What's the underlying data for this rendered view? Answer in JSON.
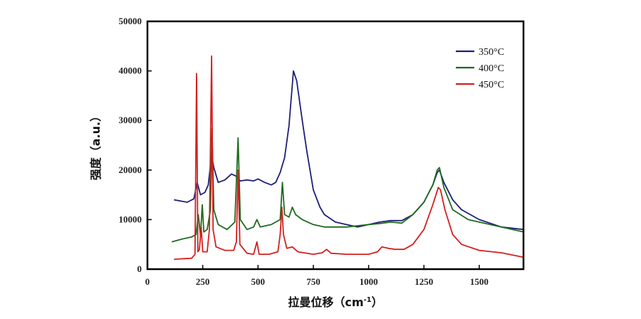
{
  "chart_data": {
    "type": "line",
    "title": "",
    "xlabel": "拉曼位移（cm",
    "xlabel_sup": "-1",
    "xlabel_close": "）",
    "ylabel": "强度（a.u.）",
    "xlim": [
      0,
      1700
    ],
    "ylim": [
      0,
      50000
    ],
    "xticks": [
      0,
      250,
      500,
      750,
      1000,
      1250,
      1500
    ],
    "yticks": [
      0,
      10000,
      20000,
      30000,
      40000,
      50000
    ],
    "grid": false,
    "legend_position": "top-right",
    "series": [
      {
        "name": "350°C",
        "color": "#1f1f7a",
        "points": [
          [
            120,
            14000
          ],
          [
            180,
            13500
          ],
          [
            210,
            14200
          ],
          [
            225,
            17500
          ],
          [
            240,
            15000
          ],
          [
            260,
            15500
          ],
          [
            275,
            17000
          ],
          [
            290,
            23000
          ],
          [
            300,
            20500
          ],
          [
            320,
            17500
          ],
          [
            350,
            18000
          ],
          [
            380,
            19200
          ],
          [
            400,
            18800
          ],
          [
            420,
            17800
          ],
          [
            450,
            18000
          ],
          [
            480,
            17800
          ],
          [
            500,
            18200
          ],
          [
            530,
            17500
          ],
          [
            560,
            17000
          ],
          [
            580,
            17500
          ],
          [
            600,
            19500
          ],
          [
            620,
            22500
          ],
          [
            640,
            29000
          ],
          [
            660,
            40000
          ],
          [
            675,
            38000
          ],
          [
            700,
            30000
          ],
          [
            720,
            24000
          ],
          [
            750,
            16000
          ],
          [
            780,
            12500
          ],
          [
            800,
            11000
          ],
          [
            850,
            9500
          ],
          [
            900,
            9000
          ],
          [
            950,
            8500
          ],
          [
            1000,
            9000
          ],
          [
            1050,
            9500
          ],
          [
            1100,
            9800
          ],
          [
            1150,
            9800
          ],
          [
            1200,
            11000
          ],
          [
            1250,
            13500
          ],
          [
            1290,
            17000
          ],
          [
            1310,
            19500
          ],
          [
            1320,
            20000
          ],
          [
            1340,
            17500
          ],
          [
            1380,
            14000
          ],
          [
            1420,
            12000
          ],
          [
            1500,
            10000
          ],
          [
            1600,
            8500
          ],
          [
            1700,
            8000
          ]
        ]
      },
      {
        "name": "400°C",
        "color": "#1e6b1e",
        "points": [
          [
            110,
            5500
          ],
          [
            150,
            6000
          ],
          [
            200,
            6500
          ],
          [
            220,
            7000
          ],
          [
            230,
            11000
          ],
          [
            240,
            6800
          ],
          [
            248,
            13000
          ],
          [
            255,
            7500
          ],
          [
            270,
            8000
          ],
          [
            285,
            12000
          ],
          [
            292,
            28500
          ],
          [
            300,
            12000
          ],
          [
            320,
            9000
          ],
          [
            360,
            8000
          ],
          [
            395,
            9500
          ],
          [
            410,
            26500
          ],
          [
            420,
            10000
          ],
          [
            450,
            8000
          ],
          [
            480,
            8500
          ],
          [
            495,
            10000
          ],
          [
            510,
            8500
          ],
          [
            560,
            9000
          ],
          [
            600,
            10000
          ],
          [
            610,
            17500
          ],
          [
            620,
            11000
          ],
          [
            640,
            10500
          ],
          [
            655,
            12500
          ],
          [
            670,
            11000
          ],
          [
            700,
            10000
          ],
          [
            750,
            9000
          ],
          [
            800,
            8500
          ],
          [
            900,
            8500
          ],
          [
            1000,
            9000
          ],
          [
            1050,
            9200
          ],
          [
            1100,
            9500
          ],
          [
            1150,
            9300
          ],
          [
            1200,
            11000
          ],
          [
            1250,
            13500
          ],
          [
            1290,
            17000
          ],
          [
            1310,
            20000
          ],
          [
            1320,
            20500
          ],
          [
            1340,
            16500
          ],
          [
            1380,
            12000
          ],
          [
            1450,
            10000
          ],
          [
            1550,
            9000
          ],
          [
            1650,
            8000
          ],
          [
            1700,
            7500
          ]
        ]
      },
      {
        "name": "450°C",
        "color": "#d42020",
        "points": [
          [
            120,
            2000
          ],
          [
            200,
            2200
          ],
          [
            215,
            3000
          ],
          [
            222,
            39500
          ],
          [
            228,
            3500
          ],
          [
            235,
            4000
          ],
          [
            243,
            8500
          ],
          [
            250,
            3500
          ],
          [
            270,
            3500
          ],
          [
            280,
            8000
          ],
          [
            290,
            43000
          ],
          [
            297,
            8000
          ],
          [
            310,
            4500
          ],
          [
            350,
            3800
          ],
          [
            390,
            3800
          ],
          [
            402,
            5500
          ],
          [
            410,
            20000
          ],
          [
            418,
            5000
          ],
          [
            450,
            3200
          ],
          [
            480,
            3000
          ],
          [
            495,
            5500
          ],
          [
            505,
            3000
          ],
          [
            550,
            3000
          ],
          [
            590,
            3500
          ],
          [
            600,
            7000
          ],
          [
            608,
            12500
          ],
          [
            615,
            7000
          ],
          [
            630,
            4200
          ],
          [
            655,
            4500
          ],
          [
            680,
            3500
          ],
          [
            750,
            3000
          ],
          [
            790,
            3300
          ],
          [
            810,
            4000
          ],
          [
            830,
            3200
          ],
          [
            900,
            3000
          ],
          [
            1000,
            3000
          ],
          [
            1040,
            3500
          ],
          [
            1060,
            4500
          ],
          [
            1090,
            4200
          ],
          [
            1120,
            4000
          ],
          [
            1160,
            4000
          ],
          [
            1200,
            5000
          ],
          [
            1250,
            8000
          ],
          [
            1290,
            13000
          ],
          [
            1315,
            16500
          ],
          [
            1325,
            16000
          ],
          [
            1345,
            12000
          ],
          [
            1380,
            7000
          ],
          [
            1420,
            5000
          ],
          [
            1500,
            3800
          ],
          [
            1600,
            3300
          ],
          [
            1700,
            2400
          ]
        ]
      }
    ]
  }
}
